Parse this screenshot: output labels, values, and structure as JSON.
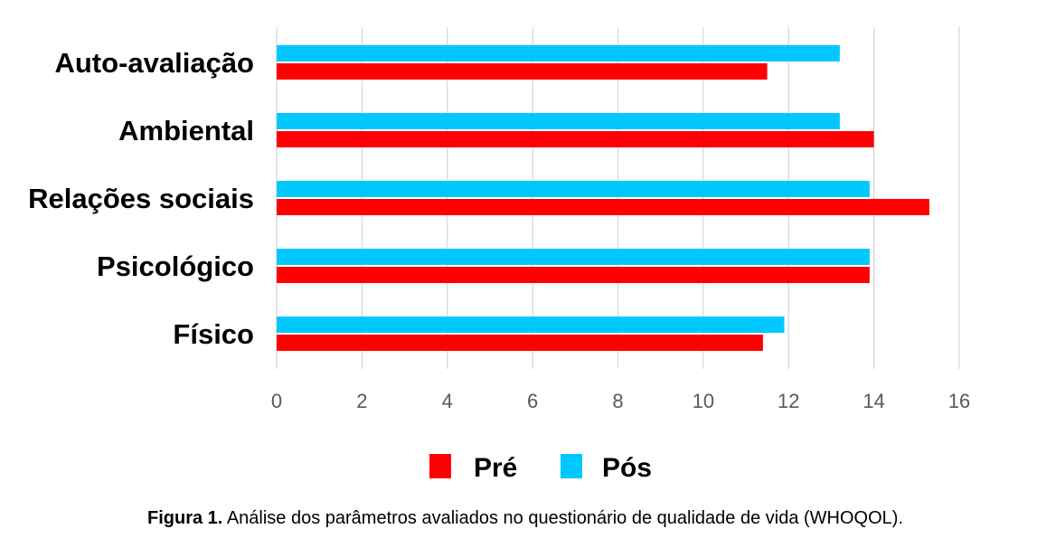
{
  "chart_data": {
    "type": "bar",
    "orientation": "horizontal",
    "categories": [
      "Auto-avaliação",
      "Ambiental",
      "Relações sociais",
      "Psicológico",
      "Físico"
    ],
    "series": [
      {
        "name": "Pré",
        "color": "#ff0000",
        "values": [
          11.5,
          14.0,
          15.3,
          13.9,
          11.4
        ]
      },
      {
        "name": "Pós",
        "color": "#00c8ff",
        "values": [
          13.2,
          13.2,
          13.9,
          13.9,
          11.9
        ]
      }
    ],
    "xlim": [
      0,
      16
    ],
    "xticks": [
      "0",
      "2",
      "4",
      "6",
      "8",
      "10",
      "12",
      "14",
      "16"
    ],
    "grid": "vertical",
    "legend": "bottom"
  },
  "caption": {
    "label": "Figura 1.",
    "text": " Análise dos parâmetros avaliados no questionário de qualidade de vida (WHOQOL)."
  }
}
